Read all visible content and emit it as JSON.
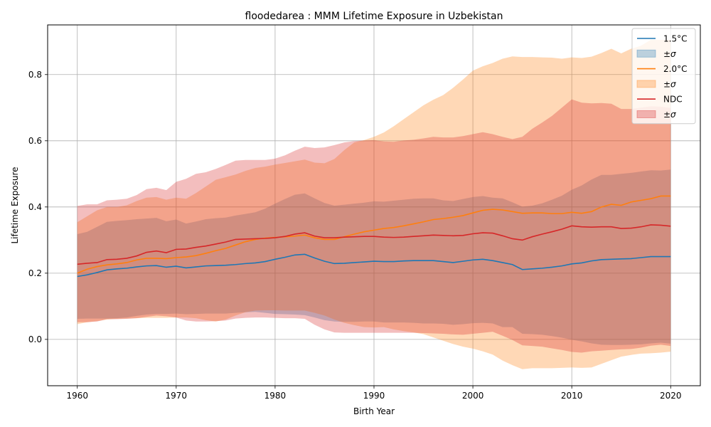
{
  "chart_data": {
    "type": "area",
    "title": "floodedarea : MMM Lifetime Exposure in Uzbekistan",
    "xlabel": "Birth Year",
    "ylabel": "Lifetime Exposure",
    "xlim": [
      1957,
      2023
    ],
    "ylim": [
      -0.14,
      0.95
    ],
    "xticks": [
      1960,
      1970,
      1980,
      1990,
      2000,
      2010,
      2020
    ],
    "yticks": [
      0.0,
      0.2,
      0.4,
      0.6,
      0.8
    ],
    "ytick_labels": [
      "0.0",
      "0.2",
      "0.4",
      "0.6",
      "0.8"
    ],
    "grid": true,
    "legend_position": "top-right",
    "x": [
      1960,
      1961,
      1962,
      1963,
      1964,
      1965,
      1966,
      1967,
      1968,
      1969,
      1970,
      1971,
      1972,
      1973,
      1974,
      1975,
      1976,
      1977,
      1978,
      1979,
      1980,
      1981,
      1982,
      1983,
      1984,
      1985,
      1986,
      1987,
      1988,
      1989,
      1990,
      1991,
      1992,
      1993,
      1994,
      1995,
      1996,
      1997,
      1998,
      1999,
      2000,
      2001,
      2002,
      2003,
      2004,
      2005,
      2006,
      2007,
      2008,
      2009,
      2010,
      2011,
      2012,
      2013,
      2014,
      2015,
      2016,
      2017,
      2018,
      2019,
      2020
    ],
    "series": [
      {
        "name": "1.5°C",
        "band_label": "±σ",
        "color": "#1f77b4",
        "band_color": "#1f77b4",
        "band_opacity": 0.3,
        "mean": [
          0.19,
          0.195,
          0.202,
          0.21,
          0.213,
          0.215,
          0.219,
          0.222,
          0.223,
          0.218,
          0.221,
          0.216,
          0.219,
          0.222,
          0.223,
          0.224,
          0.226,
          0.229,
          0.231,
          0.235,
          0.242,
          0.248,
          0.255,
          0.257,
          0.246,
          0.236,
          0.229,
          0.23,
          0.232,
          0.234,
          0.236,
          0.235,
          0.235,
          0.237,
          0.238,
          0.238,
          0.238,
          0.235,
          0.232,
          0.236,
          0.24,
          0.242,
          0.238,
          0.232,
          0.226,
          0.211,
          0.213,
          0.215,
          0.218,
          0.222,
          0.228,
          0.231,
          0.237,
          0.241,
          0.242,
          0.243,
          0.244,
          0.247,
          0.25,
          0.25,
          0.25
        ],
        "upper": [
          0.318,
          0.325,
          0.34,
          0.355,
          0.358,
          0.36,
          0.363,
          0.365,
          0.367,
          0.357,
          0.362,
          0.35,
          0.356,
          0.363,
          0.366,
          0.368,
          0.374,
          0.379,
          0.384,
          0.395,
          0.41,
          0.424,
          0.437,
          0.441,
          0.426,
          0.412,
          0.404,
          0.407,
          0.41,
          0.413,
          0.417,
          0.416,
          0.419,
          0.422,
          0.425,
          0.426,
          0.426,
          0.42,
          0.418,
          0.424,
          0.43,
          0.433,
          0.428,
          0.426,
          0.414,
          0.401,
          0.404,
          0.411,
          0.422,
          0.434,
          0.452,
          0.465,
          0.483,
          0.497,
          0.497,
          0.5,
          0.503,
          0.507,
          0.511,
          0.51,
          0.513
        ],
        "lower": [
          0.062,
          0.063,
          0.063,
          0.063,
          0.064,
          0.066,
          0.071,
          0.075,
          0.077,
          0.077,
          0.078,
          0.076,
          0.077,
          0.078,
          0.078,
          0.078,
          0.08,
          0.082,
          0.083,
          0.08,
          0.077,
          0.076,
          0.075,
          0.073,
          0.066,
          0.058,
          0.054,
          0.053,
          0.053,
          0.054,
          0.054,
          0.051,
          0.051,
          0.051,
          0.05,
          0.048,
          0.048,
          0.047,
          0.044,
          0.046,
          0.049,
          0.05,
          0.048,
          0.037,
          0.037,
          0.017,
          0.016,
          0.014,
          0.01,
          0.005,
          -0.001,
          -0.006,
          -0.012,
          -0.016,
          -0.017,
          -0.017,
          -0.016,
          -0.015,
          -0.012,
          -0.01,
          -0.013
        ]
      },
      {
        "name": "2.0°C",
        "band_label": "±σ",
        "color": "#ff7f0e",
        "band_color": "#ff7f0e",
        "band_opacity": 0.3,
        "mean": [
          0.2,
          0.212,
          0.22,
          0.225,
          0.228,
          0.232,
          0.24,
          0.245,
          0.245,
          0.244,
          0.247,
          0.249,
          0.253,
          0.26,
          0.268,
          0.275,
          0.285,
          0.295,
          0.302,
          0.306,
          0.308,
          0.31,
          0.312,
          0.315,
          0.307,
          0.302,
          0.302,
          0.31,
          0.318,
          0.325,
          0.33,
          0.335,
          0.338,
          0.343,
          0.349,
          0.355,
          0.362,
          0.365,
          0.369,
          0.374,
          0.382,
          0.39,
          0.393,
          0.391,
          0.386,
          0.381,
          0.382,
          0.382,
          0.38,
          0.38,
          0.384,
          0.381,
          0.386,
          0.4,
          0.408,
          0.405,
          0.415,
          0.42,
          0.425,
          0.433,
          0.433
        ],
        "upper": [
          0.354,
          0.372,
          0.39,
          0.4,
          0.4,
          0.405,
          0.418,
          0.428,
          0.43,
          0.422,
          0.428,
          0.425,
          0.442,
          0.462,
          0.482,
          0.49,
          0.498,
          0.509,
          0.518,
          0.522,
          0.528,
          0.533,
          0.538,
          0.543,
          0.534,
          0.532,
          0.545,
          0.572,
          0.595,
          0.602,
          0.612,
          0.625,
          0.644,
          0.665,
          0.686,
          0.707,
          0.724,
          0.738,
          0.76,
          0.785,
          0.812,
          0.825,
          0.835,
          0.848,
          0.855,
          0.853,
          0.853,
          0.852,
          0.851,
          0.848,
          0.852,
          0.85,
          0.854,
          0.865,
          0.878,
          0.864,
          0.878,
          0.887,
          0.905,
          0.905,
          0.905
        ],
        "lower": [
          0.046,
          0.052,
          0.055,
          0.06,
          0.062,
          0.063,
          0.064,
          0.065,
          0.065,
          0.065,
          0.066,
          0.066,
          0.064,
          0.058,
          0.054,
          0.06,
          0.072,
          0.082,
          0.087,
          0.088,
          0.088,
          0.087,
          0.087,
          0.087,
          0.08,
          0.072,
          0.06,
          0.05,
          0.043,
          0.037,
          0.036,
          0.037,
          0.03,
          0.025,
          0.021,
          0.016,
          0.006,
          -0.004,
          -0.014,
          -0.022,
          -0.028,
          -0.036,
          -0.046,
          -0.064,
          -0.078,
          -0.09,
          -0.087,
          -0.087,
          -0.087,
          -0.086,
          -0.085,
          -0.086,
          -0.085,
          -0.074,
          -0.063,
          -0.052,
          -0.047,
          -0.043,
          -0.042,
          -0.04,
          -0.037
        ]
      },
      {
        "name": "NDC",
        "band_label": "±σ",
        "color": "#d62728",
        "band_color": "#d62728",
        "band_opacity": 0.3,
        "mean": [
          0.227,
          0.23,
          0.232,
          0.241,
          0.242,
          0.245,
          0.252,
          0.263,
          0.267,
          0.262,
          0.272,
          0.273,
          0.278,
          0.282,
          0.288,
          0.294,
          0.302,
          0.303,
          0.304,
          0.305,
          0.307,
          0.311,
          0.318,
          0.322,
          0.312,
          0.307,
          0.307,
          0.309,
          0.31,
          0.311,
          0.311,
          0.309,
          0.308,
          0.309,
          0.311,
          0.313,
          0.315,
          0.314,
          0.313,
          0.314,
          0.319,
          0.322,
          0.321,
          0.313,
          0.304,
          0.3,
          0.31,
          0.318,
          0.325,
          0.333,
          0.343,
          0.34,
          0.339,
          0.34,
          0.34,
          0.335,
          0.336,
          0.34,
          0.346,
          0.345,
          0.342
        ],
        "upper": [
          0.403,
          0.408,
          0.408,
          0.42,
          0.422,
          0.425,
          0.436,
          0.454,
          0.458,
          0.451,
          0.476,
          0.485,
          0.5,
          0.505,
          0.515,
          0.527,
          0.54,
          0.542,
          0.542,
          0.542,
          0.546,
          0.556,
          0.57,
          0.582,
          0.578,
          0.58,
          0.587,
          0.595,
          0.599,
          0.601,
          0.602,
          0.598,
          0.597,
          0.601,
          0.603,
          0.607,
          0.612,
          0.61,
          0.61,
          0.614,
          0.62,
          0.626,
          0.62,
          0.612,
          0.605,
          0.612,
          0.636,
          0.655,
          0.675,
          0.7,
          0.725,
          0.715,
          0.713,
          0.714,
          0.712,
          0.696,
          0.696,
          0.7,
          0.704,
          0.703,
          0.699
        ],
        "lower": [
          0.052,
          0.052,
          0.054,
          0.061,
          0.061,
          0.062,
          0.064,
          0.068,
          0.072,
          0.07,
          0.066,
          0.057,
          0.054,
          0.054,
          0.055,
          0.057,
          0.063,
          0.065,
          0.066,
          0.066,
          0.065,
          0.064,
          0.064,
          0.062,
          0.044,
          0.03,
          0.021,
          0.02,
          0.02,
          0.02,
          0.02,
          0.02,
          0.02,
          0.02,
          0.02,
          0.019,
          0.018,
          0.017,
          0.015,
          0.014,
          0.017,
          0.02,
          0.023,
          0.011,
          -0.002,
          -0.018,
          -0.02,
          -0.022,
          -0.027,
          -0.032,
          -0.038,
          -0.04,
          -0.036,
          -0.034,
          -0.032,
          -0.03,
          -0.029,
          -0.025,
          -0.019,
          -0.016,
          -0.02
        ]
      }
    ]
  }
}
